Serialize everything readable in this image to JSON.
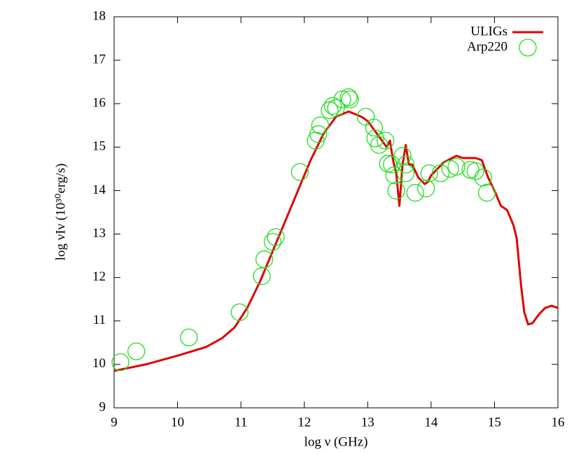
{
  "chart_data": {
    "type": "line",
    "xlabel": "log ν (GHz)",
    "ylabel": "log νIν (10³⁰erg/s)",
    "xlim": [
      9,
      16
    ],
    "xticks": [
      9,
      10,
      11,
      12,
      13,
      14,
      15,
      16
    ],
    "ylim": [
      9,
      18
    ],
    "yticks": [
      9,
      10,
      11,
      12,
      13,
      14,
      15,
      16,
      17,
      18
    ],
    "grid": false,
    "legend": "upper right",
    "series": [
      {
        "name": "ULIGs",
        "type": "line",
        "color": "#e00000",
        "x": [
          9.0,
          9.5,
          10.0,
          10.45,
          10.7,
          10.9,
          11.1,
          11.3,
          11.5,
          11.7,
          11.9,
          12.1,
          12.3,
          12.5,
          12.7,
          12.9,
          13.0,
          13.1,
          13.2,
          13.3,
          13.35,
          13.4,
          13.45,
          13.5,
          13.55,
          13.6,
          13.65,
          13.7,
          13.8,
          13.9,
          13.95,
          14.0,
          14.1,
          14.2,
          14.4,
          14.5,
          14.7,
          14.8,
          14.9,
          15.0,
          15.1,
          15.2,
          15.3,
          15.35,
          15.42,
          15.47,
          15.53,
          15.6,
          15.7,
          15.8,
          15.9,
          16.0
        ],
        "values": [
          9.85,
          10.0,
          10.2,
          10.4,
          10.6,
          10.85,
          11.3,
          11.9,
          12.6,
          13.3,
          14.0,
          14.7,
          15.3,
          15.7,
          15.82,
          15.7,
          15.6,
          15.4,
          15.2,
          15.0,
          15.15,
          14.7,
          14.4,
          13.65,
          14.6,
          15.05,
          14.6,
          14.6,
          14.3,
          14.15,
          14.2,
          14.35,
          14.5,
          14.65,
          14.8,
          14.75,
          14.75,
          14.7,
          14.3,
          14.0,
          13.65,
          13.55,
          13.2,
          12.9,
          11.8,
          11.2,
          10.92,
          10.95,
          11.15,
          11.3,
          11.35,
          11.3
        ]
      },
      {
        "name": "Arp220",
        "type": "scatter",
        "color": "#22dd22",
        "x": [
          9.1,
          9.35,
          10.18,
          10.98,
          11.33,
          11.37,
          11.5,
          11.55,
          11.93,
          12.18,
          12.22,
          12.25,
          12.4,
          12.45,
          12.5,
          12.6,
          12.7,
          12.72,
          12.97,
          13.1,
          13.12,
          13.18,
          13.28,
          13.32,
          13.38,
          13.42,
          13.45,
          13.55,
          13.6,
          13.6,
          13.75,
          13.92,
          13.97,
          14.15,
          14.3,
          14.4,
          14.62,
          14.7,
          14.82,
          14.88
        ],
        "values": [
          10.05,
          10.3,
          10.62,
          11.2,
          12.03,
          12.42,
          12.82,
          12.93,
          14.43,
          15.15,
          15.3,
          15.5,
          15.85,
          15.95,
          15.9,
          16.1,
          16.15,
          16.1,
          15.7,
          15.45,
          15.2,
          15.05,
          15.15,
          14.62,
          14.6,
          14.35,
          14.0,
          14.8,
          14.6,
          14.4,
          13.95,
          14.05,
          14.4,
          14.4,
          14.5,
          14.55,
          14.48,
          14.45,
          14.3,
          13.95
        ]
      }
    ]
  }
}
